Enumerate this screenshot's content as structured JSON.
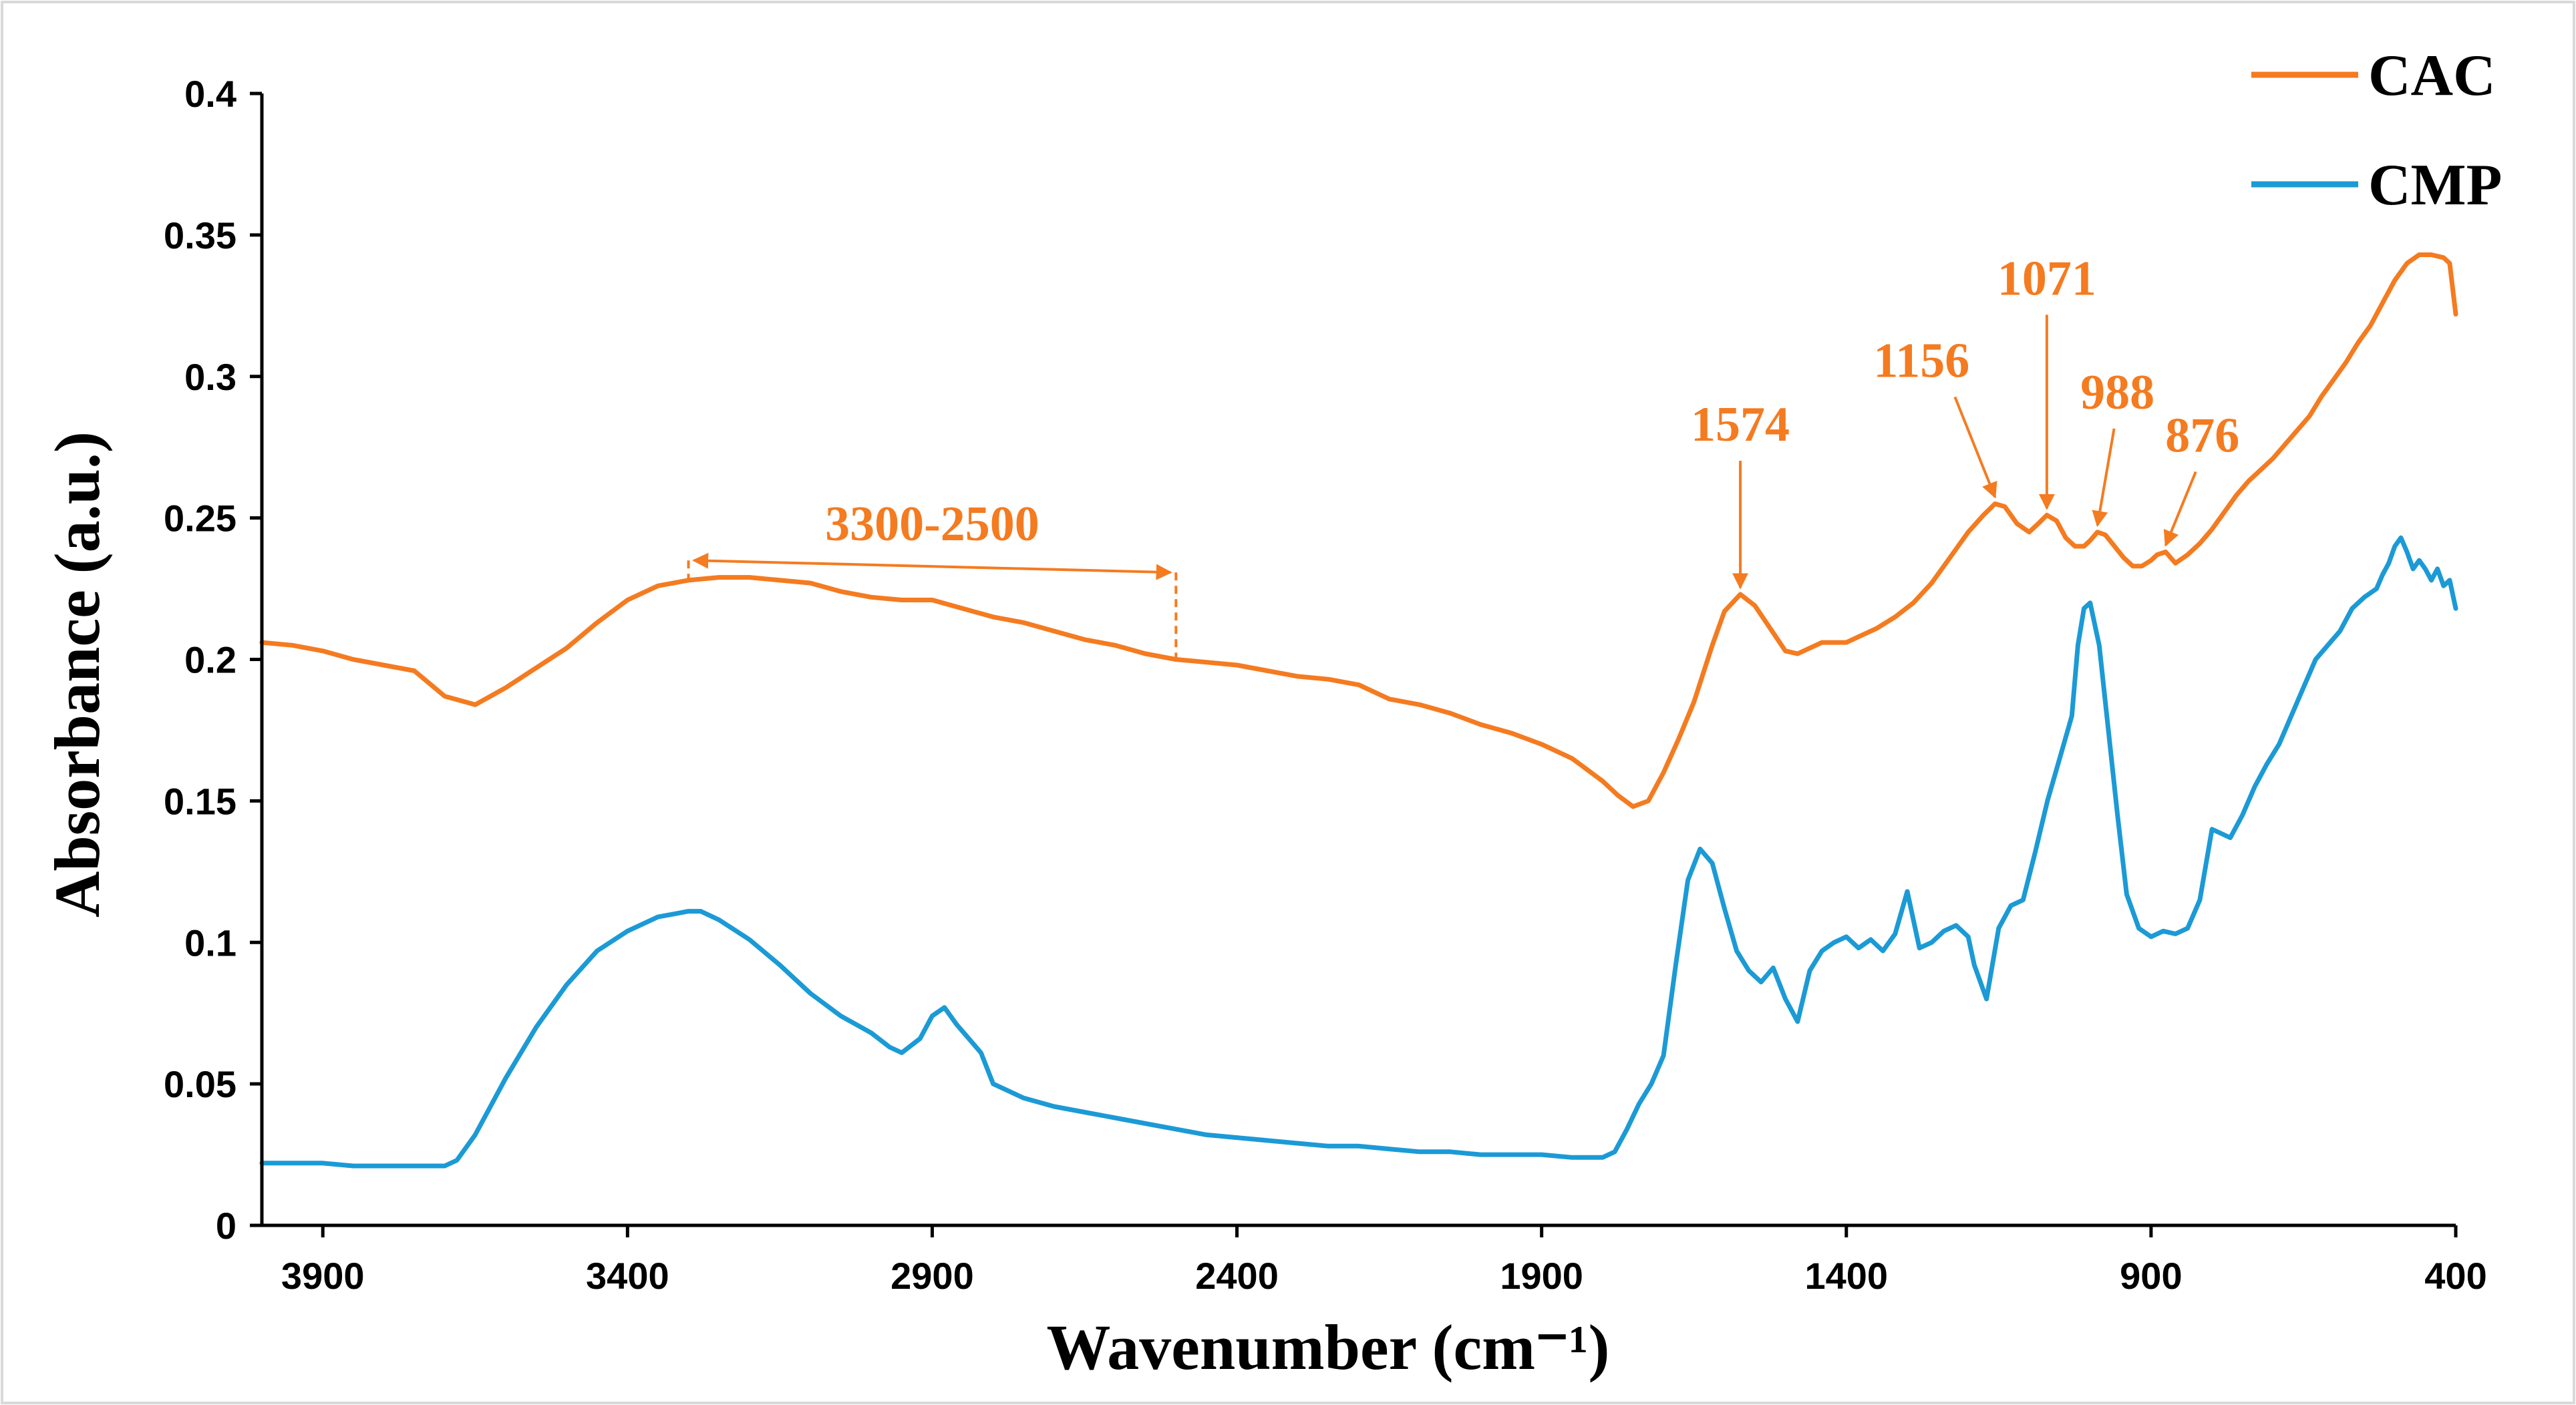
{
  "chart_data": {
    "type": "line",
    "xlabel": "Wavenumber (cm⁻¹)",
    "ylabel": "Absorbance (a.u.)",
    "xlim": [
      4000,
      400
    ],
    "x_reversed": true,
    "ylim": [
      0,
      0.4
    ],
    "x_ticks": [
      3900,
      3400,
      2900,
      2400,
      1900,
      1400,
      900,
      400
    ],
    "x_tick_labels": [
      "3900",
      "3400",
      "2900",
      "2400",
      "1900",
      "1400",
      "900",
      "400"
    ],
    "y_ticks": [
      0,
      0.05,
      0.1,
      0.15,
      0.2,
      0.25,
      0.3,
      0.35,
      0.4
    ],
    "y_tick_labels": [
      "0",
      "0.05",
      "0.1",
      "0.15",
      "0.2",
      "0.25",
      "0.3",
      "0.35",
      "0.4"
    ],
    "grid": false,
    "legend_position": "top-right",
    "series": [
      {
        "name": "CAC",
        "color": "#F47B20",
        "x": [
          4000,
          3950,
          3900,
          3850,
          3800,
          3750,
          3700,
          3650,
          3600,
          3550,
          3500,
          3450,
          3400,
          3350,
          3300,
          3250,
          3200,
          3150,
          3100,
          3050,
          3000,
          2950,
          2900,
          2850,
          2800,
          2750,
          2700,
          2650,
          2600,
          2550,
          2500,
          2450,
          2400,
          2350,
          2300,
          2250,
          2200,
          2150,
          2100,
          2050,
          2000,
          1950,
          1900,
          1850,
          1800,
          1775,
          1750,
          1725,
          1700,
          1675,
          1650,
          1620,
          1600,
          1574,
          1550,
          1525,
          1500,
          1480,
          1460,
          1440,
          1420,
          1400,
          1380,
          1350,
          1320,
          1290,
          1260,
          1230,
          1200,
          1175,
          1156,
          1140,
          1120,
          1100,
          1085,
          1071,
          1055,
          1040,
          1025,
          1010,
          1000,
          988,
          975,
          960,
          945,
          930,
          915,
          900,
          890,
          876,
          860,
          840,
          820,
          800,
          780,
          760,
          740,
          720,
          700,
          680,
          660,
          640,
          620,
          600,
          580,
          560,
          540,
          520,
          500,
          480,
          460,
          440,
          420,
          410,
          400
        ],
        "values": [
          0.206,
          0.205,
          0.203,
          0.2,
          0.198,
          0.196,
          0.187,
          0.184,
          0.19,
          0.197,
          0.204,
          0.213,
          0.221,
          0.226,
          0.228,
          0.229,
          0.229,
          0.228,
          0.227,
          0.224,
          0.222,
          0.221,
          0.221,
          0.218,
          0.215,
          0.213,
          0.21,
          0.207,
          0.205,
          0.202,
          0.2,
          0.199,
          0.198,
          0.196,
          0.194,
          0.193,
          0.191,
          0.186,
          0.184,
          0.181,
          0.177,
          0.174,
          0.17,
          0.165,
          0.157,
          0.152,
          0.148,
          0.15,
          0.16,
          0.172,
          0.185,
          0.205,
          0.217,
          0.223,
          0.219,
          0.211,
          0.203,
          0.202,
          0.204,
          0.206,
          0.206,
          0.206,
          0.208,
          0.211,
          0.215,
          0.22,
          0.227,
          0.236,
          0.245,
          0.251,
          0.255,
          0.254,
          0.248,
          0.245,
          0.248,
          0.251,
          0.249,
          0.243,
          0.24,
          0.24,
          0.242,
          0.245,
          0.244,
          0.24,
          0.236,
          0.233,
          0.233,
          0.235,
          0.237,
          0.238,
          0.234,
          0.237,
          0.241,
          0.246,
          0.252,
          0.258,
          0.263,
          0.267,
          0.271,
          0.276,
          0.281,
          0.286,
          0.293,
          0.299,
          0.305,
          0.312,
          0.318,
          0.326,
          0.334,
          0.34,
          0.343,
          0.343,
          0.342,
          0.34,
          0.322
        ]
      },
      {
        "name": "CMP",
        "color": "#1B9AD6",
        "x": [
          4000,
          3950,
          3900,
          3850,
          3800,
          3750,
          3700,
          3680,
          3650,
          3600,
          3550,
          3500,
          3450,
          3400,
          3350,
          3300,
          3280,
          3250,
          3200,
          3150,
          3100,
          3050,
          3000,
          2970,
          2950,
          2920,
          2900,
          2880,
          2860,
          2840,
          2820,
          2800,
          2750,
          2700,
          2650,
          2600,
          2550,
          2500,
          2450,
          2400,
          2350,
          2300,
          2250,
          2200,
          2150,
          2100,
          2050,
          2000,
          1950,
          1900,
          1850,
          1800,
          1780,
          1760,
          1740,
          1720,
          1700,
          1680,
          1660,
          1640,
          1620,
          1600,
          1580,
          1560,
          1540,
          1520,
          1500,
          1480,
          1460,
          1440,
          1420,
          1400,
          1380,
          1360,
          1340,
          1320,
          1300,
          1280,
          1260,
          1240,
          1220,
          1200,
          1190,
          1170,
          1150,
          1130,
          1110,
          1090,
          1070,
          1050,
          1030,
          1020,
          1010,
          1000,
          985,
          970,
          955,
          940,
          920,
          900,
          880,
          860,
          840,
          820,
          800,
          790,
          770,
          750,
          730,
          710,
          690,
          670,
          650,
          630,
          610,
          590,
          570,
          550,
          530,
          520,
          510,
          500,
          490,
          480,
          470,
          460,
          450,
          440,
          430,
          420,
          410,
          400
        ],
        "values": [
          0.022,
          0.022,
          0.022,
          0.021,
          0.021,
          0.021,
          0.021,
          0.023,
          0.032,
          0.052,
          0.07,
          0.085,
          0.097,
          0.104,
          0.109,
          0.111,
          0.111,
          0.108,
          0.101,
          0.092,
          0.082,
          0.074,
          0.068,
          0.063,
          0.061,
          0.066,
          0.074,
          0.077,
          0.071,
          0.066,
          0.061,
          0.05,
          0.045,
          0.042,
          0.04,
          0.038,
          0.036,
          0.034,
          0.032,
          0.031,
          0.03,
          0.029,
          0.028,
          0.028,
          0.027,
          0.026,
          0.026,
          0.025,
          0.025,
          0.025,
          0.024,
          0.024,
          0.026,
          0.034,
          0.043,
          0.05,
          0.06,
          0.092,
          0.122,
          0.133,
          0.128,
          0.112,
          0.097,
          0.09,
          0.086,
          0.091,
          0.08,
          0.072,
          0.09,
          0.097,
          0.1,
          0.102,
          0.098,
          0.101,
          0.097,
          0.103,
          0.118,
          0.098,
          0.1,
          0.104,
          0.106,
          0.102,
          0.092,
          0.08,
          0.105,
          0.113,
          0.115,
          0.132,
          0.15,
          0.165,
          0.18,
          0.205,
          0.218,
          0.22,
          0.205,
          0.175,
          0.145,
          0.117,
          0.105,
          0.102,
          0.104,
          0.103,
          0.105,
          0.115,
          0.14,
          0.139,
          0.137,
          0.145,
          0.155,
          0.163,
          0.17,
          0.18,
          0.19,
          0.2,
          0.205,
          0.21,
          0.218,
          0.222,
          0.225,
          0.23,
          0.234,
          0.24,
          0.243,
          0.238,
          0.232,
          0.235,
          0.232,
          0.228,
          0.232,
          0.226,
          0.228,
          0.218
        ]
      }
    ],
    "annotations": [
      {
        "label": "3300-2500",
        "type": "range",
        "x_start": 3300,
        "x_end": 2500
      },
      {
        "label": "1574",
        "type": "peak",
        "x": 1574,
        "series": "CAC"
      },
      {
        "label": "1156",
        "type": "peak",
        "x": 1156,
        "series": "CAC"
      },
      {
        "label": "1071",
        "type": "peak",
        "x": 1071,
        "series": "CAC"
      },
      {
        "label": "988",
        "type": "peak",
        "x": 988,
        "series": "CAC"
      },
      {
        "label": "876",
        "type": "peak",
        "x": 876,
        "series": "CAC"
      }
    ]
  }
}
